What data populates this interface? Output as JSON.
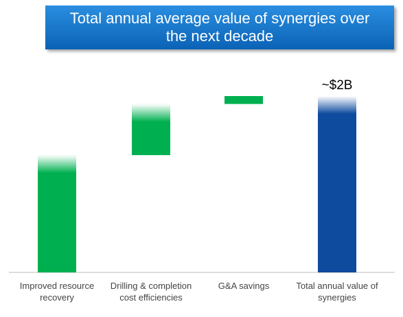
{
  "chart_data": {
    "type": "waterfall",
    "title": "Total annual average value of synergies over the next decade",
    "categories": [
      "Improved resource recovery",
      "Drilling & completion cost efficiencies",
      "G&A savings",
      "Total annual value of synergies"
    ],
    "values": [
      1.33,
      0.58,
      0.09,
      2
    ],
    "value_labels": [
      null,
      null,
      null,
      "~$2B"
    ],
    "is_total": [
      false,
      false,
      false,
      true
    ],
    "color": "#00b050",
    "total_color": "#0e4a9e"
  }
}
